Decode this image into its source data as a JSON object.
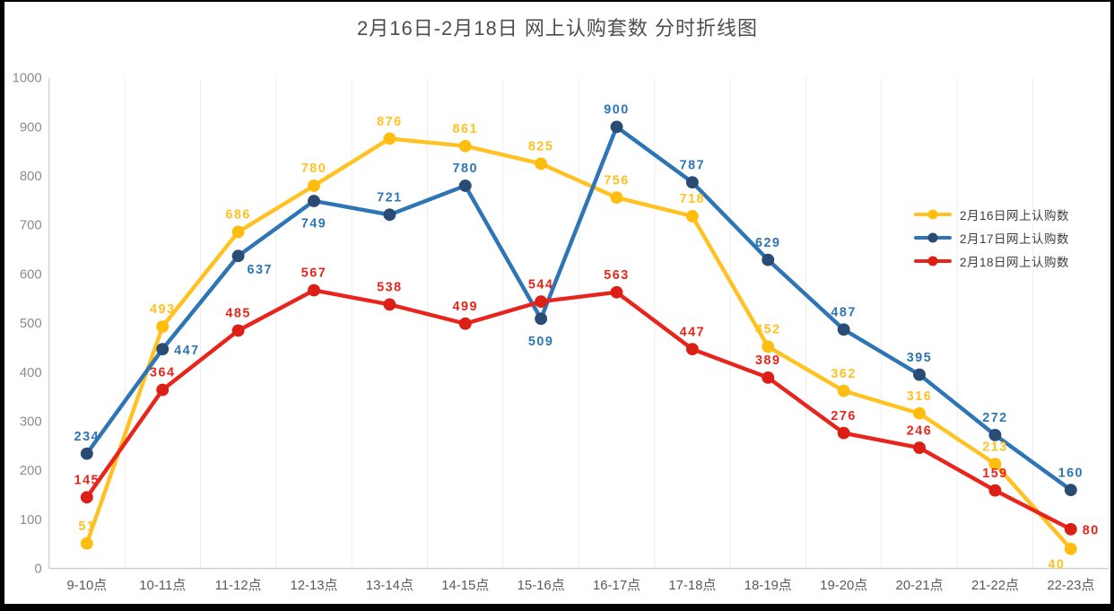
{
  "chart_data": {
    "type": "line",
    "title": "2月16日-2月18日 网上认购套数 分时折线图",
    "categories": [
      "9-10点",
      "10-11点",
      "11-12点",
      "12-13点",
      "13-14点",
      "14-15点",
      "15-16点",
      "16-17点",
      "17-18点",
      "18-19点",
      "19-20点",
      "20-21点",
      "21-22点",
      "22-23点"
    ],
    "series": [
      {
        "name": "2月16日网上认购数",
        "color": "#FFC222",
        "marker_color": "#FFBD10",
        "values": [
          51,
          493,
          686,
          780,
          876,
          861,
          825,
          756,
          718,
          452,
          362,
          316,
          213,
          40
        ]
      },
      {
        "name": "2月17日网上认购数",
        "color": "#2E75B6",
        "marker_color": "#2A4B73",
        "values": [
          234,
          447,
          637,
          749,
          721,
          780,
          509,
          900,
          787,
          629,
          487,
          395,
          272,
          160
        ]
      },
      {
        "name": "2月18日网上认购数",
        "color": "#E8251C",
        "marker_color": "#DC1F14",
        "values": [
          145,
          364,
          485,
          567,
          538,
          499,
          544,
          563,
          447,
          389,
          276,
          246,
          159,
          80
        ]
      }
    ],
    "ylim": [
      0,
      1000
    ],
    "ytick_step": 100,
    "grid": "vertical",
    "legend_position": "right-inside",
    "data_labels": true,
    "label_overrides": {
      "0": {
        "13": "below-left"
      },
      "1": {
        "1": "right",
        "2": "below-right",
        "3": "below",
        "6": "below"
      },
      "2": {
        "13": "right"
      }
    },
    "colors": {
      "title_text": "#4d4d4d",
      "y_axis_text": "#8c8c8c",
      "x_axis_text": "#595959",
      "gridline": "#ededed",
      "axis_line": "#d0d0d0",
      "legend_text": "#3d3d3d"
    }
  }
}
